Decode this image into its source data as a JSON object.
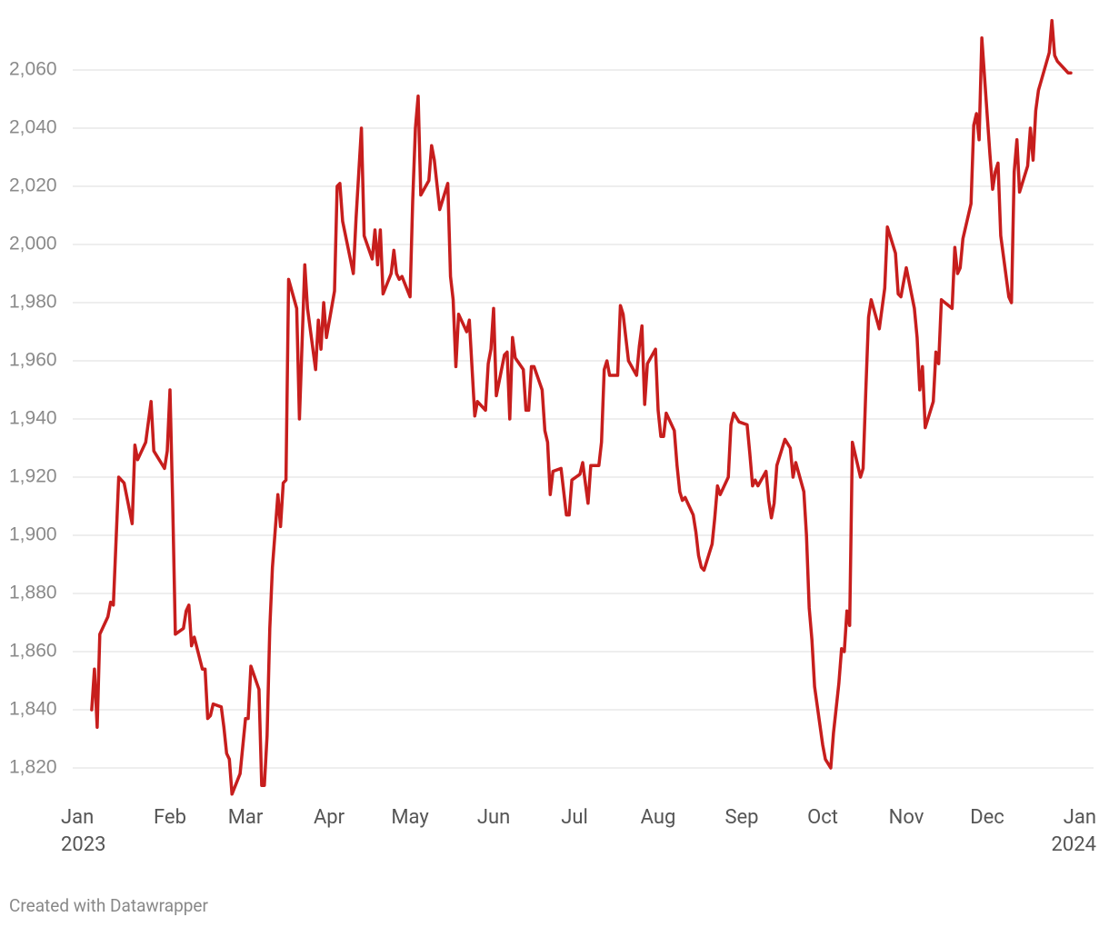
{
  "chart_data": {
    "type": "line",
    "color": "#c71e1d",
    "grid": true,
    "x": [
      2,
      3,
      4,
      5,
      8,
      9,
      10,
      12,
      14,
      17,
      18,
      19,
      22,
      24,
      25,
      29,
      30,
      31,
      32,
      33,
      36,
      37,
      38,
      39,
      40,
      43,
      44,
      45,
      46,
      47,
      50,
      51,
      52,
      53,
      54,
      57,
      59,
      60,
      61,
      64,
      65,
      66,
      67,
      68,
      69,
      71,
      72,
      73,
      74,
      75,
      78,
      79,
      81,
      82,
      85,
      86,
      87,
      88,
      89,
      92,
      93,
      94,
      95,
      99,
      100,
      102,
      103,
      106,
      107,
      108,
      109,
      110,
      113,
      114,
      115,
      116,
      117,
      120,
      121,
      122,
      123,
      124,
      127,
      128,
      129,
      131,
      134,
      135,
      136,
      137,
      138,
      141,
      142,
      144,
      145,
      148,
      149,
      150,
      151,
      152,
      155,
      156,
      157,
      158,
      159,
      162,
      163,
      164,
      165,
      166,
      169,
      170,
      171,
      172,
      173,
      176,
      178,
      179,
      180,
      183,
      184,
      186,
      187,
      190,
      191,
      192,
      193,
      194,
      197,
      198,
      199,
      201,
      204,
      205,
      206,
      207,
      208,
      211,
      212,
      213,
      214,
      215,
      218,
      219,
      220,
      221,
      222,
      225,
      226,
      227,
      228,
      229,
      232,
      233,
      234,
      235,
      238,
      239,
      240,
      242,
      245,
      246,
      247,
      248,
      249,
      252,
      253,
      254,
      255,
      256,
      259,
      261,
      262,
      263,
      266,
      267,
      268,
      269,
      270,
      273,
      274,
      276,
      277,
      279,
      280,
      281,
      282,
      283,
      284,
      287,
      288,
      289,
      290,
      291,
      294,
      295,
      296,
      297,
      300,
      301,
      302,
      303,
      304,
      307,
      308,
      309,
      310,
      311,
      314,
      315,
      316,
      317,
      321,
      322,
      323,
      324,
      325,
      328,
      329,
      330,
      331,
      332,
      335,
      336,
      337,
      338,
      339,
      342,
      343,
      344,
      345,
      346,
      349,
      350,
      351,
      352,
      353,
      357,
      358,
      359,
      360,
      363,
      364,
      365
    ],
    "values": [
      1840,
      1854,
      1834,
      1866,
      1872,
      1877,
      1876,
      1920,
      1918,
      1904,
      1931,
      1926,
      1932,
      1946,
      1929,
      1923,
      1929,
      1950,
      1912,
      1866,
      1868,
      1874,
      1876,
      1862,
      1865,
      1854,
      1854,
      1837,
      1838,
      1842,
      1841,
      1834,
      1825,
      1823,
      1811,
      1818,
      1837,
      1837,
      1855,
      1847,
      1814,
      1814,
      1831,
      1868,
      1889,
      1914,
      1903,
      1918,
      1919,
      1988,
      1978,
      1940,
      1993,
      1978,
      1957,
      1974,
      1964,
      1980,
      1968,
      1984,
      2020,
      2021,
      2008,
      1990,
      2009,
      2040,
      2003,
      1995,
      2005,
      1993,
      2005,
      1983,
      1990,
      1998,
      1990,
      1988,
      1989,
      1982,
      2015,
      2040,
      2051,
      2017,
      2022,
      2034,
      2029,
      2012,
      2021,
      1989,
      1981,
      1958,
      1976,
      1970,
      1974,
      1941,
      1946,
      1943,
      1959,
      1964,
      1978,
      1948,
      1962,
      1963,
      1940,
      1968,
      1961,
      1957,
      1943,
      1943,
      1958,
      1958,
      1950,
      1936,
      1932,
      1914,
      1922,
      1923,
      1907,
      1907,
      1919,
      1921,
      1925,
      1911,
      1924,
      1924,
      1932,
      1957,
      1960,
      1955,
      1955,
      1979,
      1976,
      1960,
      1955,
      1965,
      1972,
      1945,
      1959,
      1964,
      1943,
      1934,
      1934,
      1942,
      1936,
      1924,
      1915,
      1912,
      1913,
      1907,
      1901,
      1893,
      1889,
      1888,
      1897,
      1906,
      1917,
      1914,
      1920,
      1938,
      1942,
      1939,
      1938,
      1928,
      1917,
      1919,
      1917,
      1922,
      1912,
      1906,
      1911,
      1924,
      1933,
      1930,
      1920,
      1925,
      1915,
      1900,
      1875,
      1864,
      1848,
      1828,
      1823,
      1820,
      1832,
      1849,
      1861,
      1860,
      1874,
      1869,
      1932,
      1920,
      1923,
      1950,
      1975,
      1981,
      1971,
      1978,
      1985,
      2006,
      1997,
      1983,
      1982,
      1987,
      1992,
      1978,
      1968,
      1950,
      1958,
      1937,
      1946,
      1963,
      1959,
      1981,
      1978,
      1999,
      1990,
      1992,
      2002,
      2014,
      2041,
      2045,
      2036,
      2071,
      2031,
      2019,
      2025,
      2028,
      2003,
      1982,
      1980,
      2025,
      2036,
      2018,
      2027,
      2040,
      2029,
      2046,
      2053,
      2066,
      2077,
      2065,
      2063,
      2060,
      2059,
      2059
    ],
    "xlim": [
      0,
      365
    ],
    "xticks": [
      {
        "value": 0,
        "label": "Jan\n2023"
      },
      {
        "value": 31,
        "label": "Feb"
      },
      {
        "value": 59,
        "label": "Mar"
      },
      {
        "value": 90,
        "label": "Apr"
      },
      {
        "value": 120,
        "label": "May"
      },
      {
        "value": 151,
        "label": "Jun"
      },
      {
        "value": 181,
        "label": "Jul"
      },
      {
        "value": 212,
        "label": "Aug"
      },
      {
        "value": 243,
        "label": "Sep"
      },
      {
        "value": 273,
        "label": "Oct"
      },
      {
        "value": 304,
        "label": "Nov"
      },
      {
        "value": 334,
        "label": "Dec"
      },
      {
        "value": 365,
        "label": "Jan\n2024"
      }
    ],
    "ylim": [
      1810,
      2080
    ],
    "yticks": [
      {
        "value": 1820,
        "label": "1,820"
      },
      {
        "value": 1840,
        "label": "1,840"
      },
      {
        "value": 1860,
        "label": "1,860"
      },
      {
        "value": 1880,
        "label": "1,880"
      },
      {
        "value": 1900,
        "label": "1,900"
      },
      {
        "value": 1920,
        "label": "1,920"
      },
      {
        "value": 1940,
        "label": "1,940"
      },
      {
        "value": 1960,
        "label": "1,960"
      },
      {
        "value": 1980,
        "label": "1,980"
      },
      {
        "value": 2000,
        "label": "2,000"
      },
      {
        "value": 2020,
        "label": "2,020"
      },
      {
        "value": 2040,
        "label": "2,040"
      },
      {
        "value": 2060,
        "label": "2,060"
      }
    ],
    "footer": "Created with Datawrapper"
  }
}
